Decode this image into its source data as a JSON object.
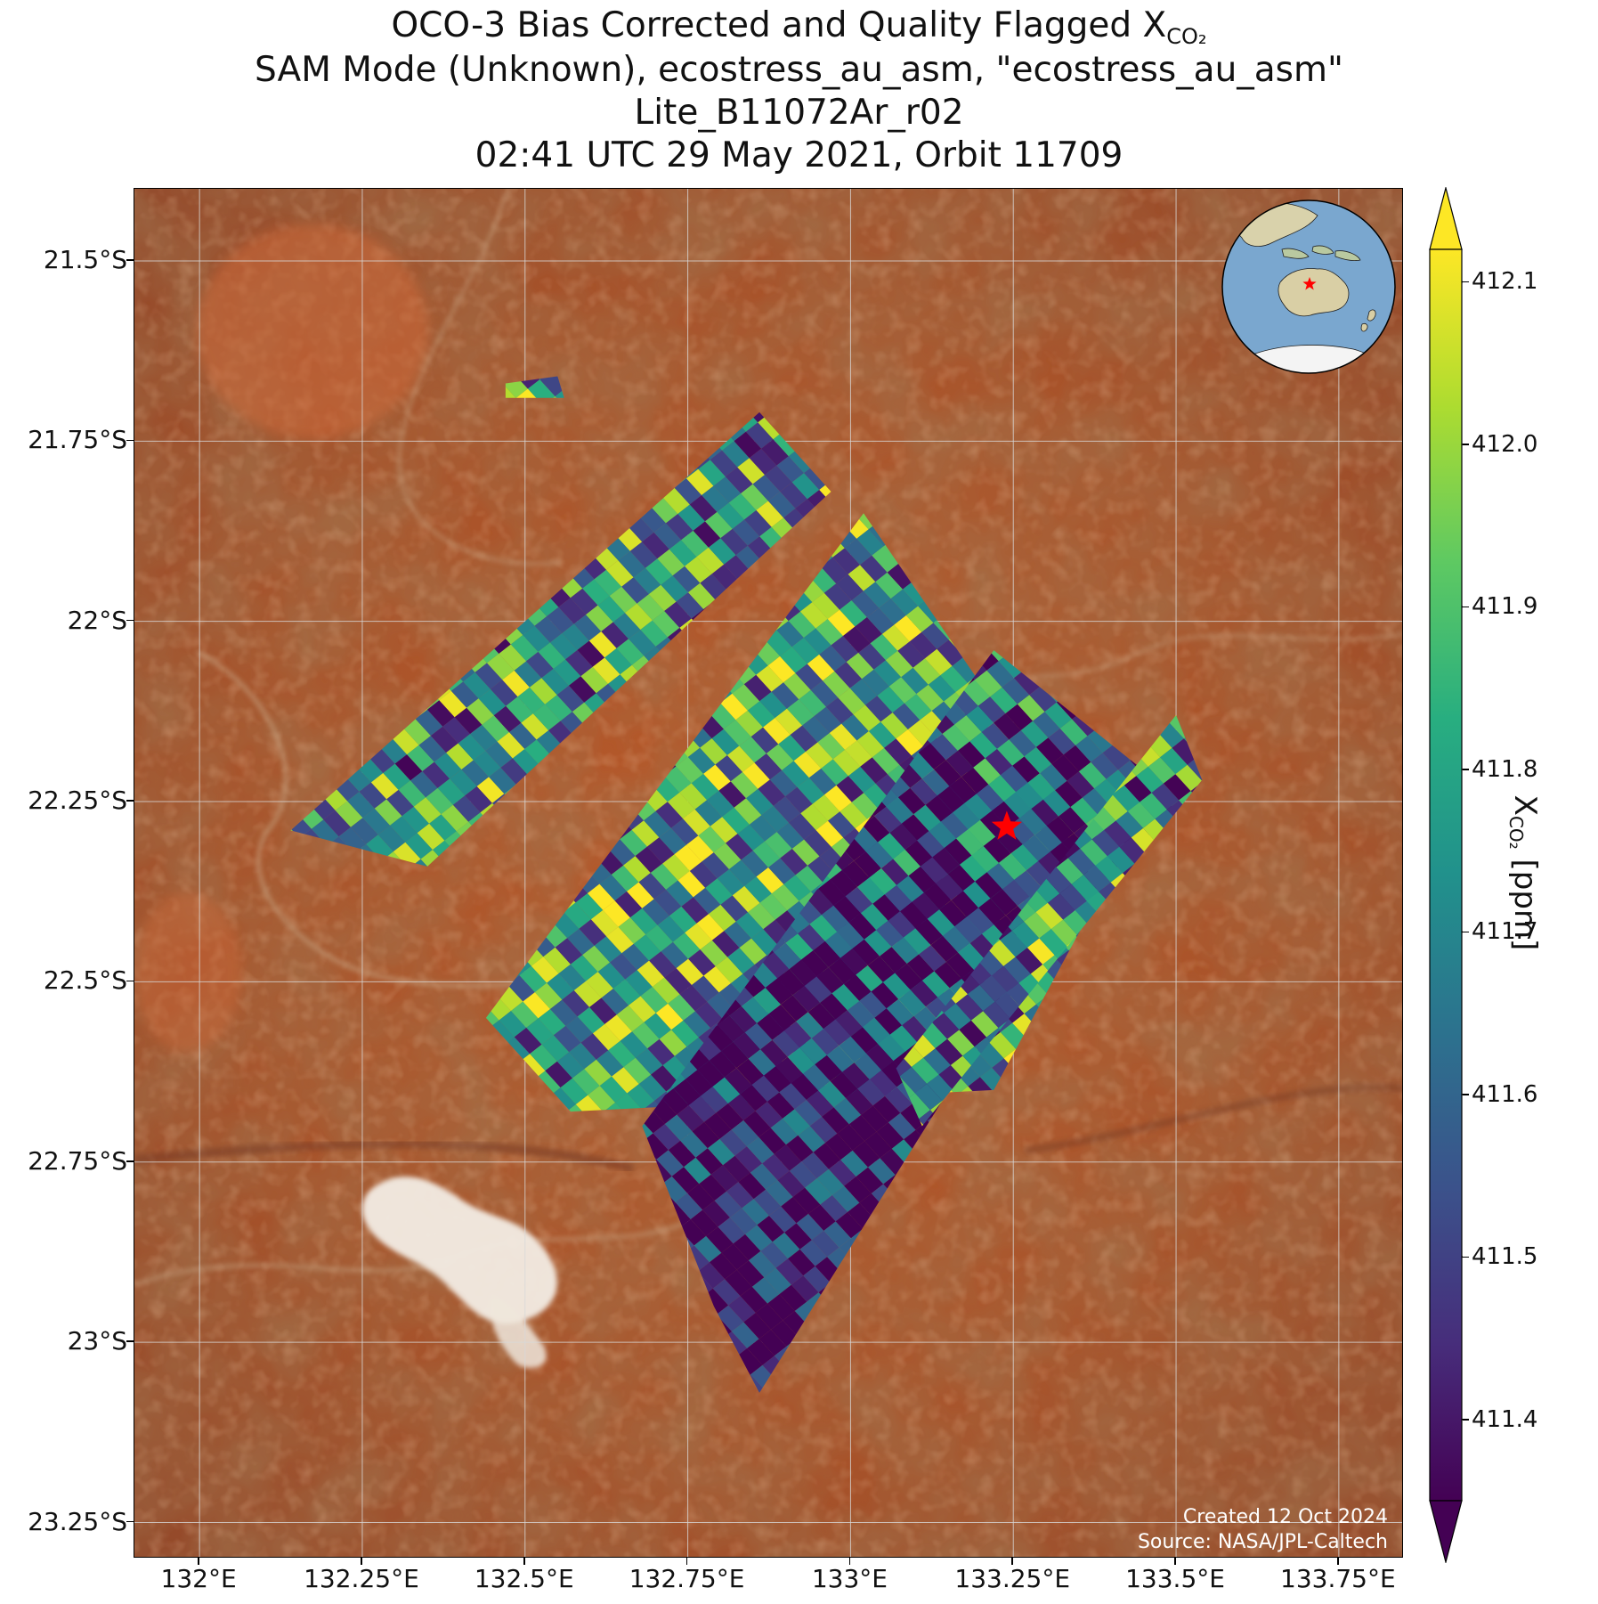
{
  "title": {
    "line1_prefix": "OCO-3 Bias Corrected and Quality Flagged X",
    "line1_sub": "CO₂",
    "line2": "SAM Mode (Unknown), ecostress_au_asm, \"ecostress_au_asm\"",
    "line3": "Lite_B11072Ar_r02",
    "line4": "02:41 UTC 29 May 2021, Orbit 11709"
  },
  "map": {
    "lon_range": [
      131.9,
      133.85
    ],
    "lat_range": [
      -23.3,
      -21.4
    ],
    "background": "satellite imagery, central Australia (arid red terrain, white salt lake in lower left)",
    "gridlines": true,
    "lon_ticks": [
      {
        "value": 132.0,
        "label": "132°E"
      },
      {
        "value": 132.25,
        "label": "132.25°E"
      },
      {
        "value": 132.5,
        "label": "132.5°E"
      },
      {
        "value": 132.75,
        "label": "132.75°E"
      },
      {
        "value": 133.0,
        "label": "133°E"
      },
      {
        "value": 133.25,
        "label": "133.25°E"
      },
      {
        "value": 133.5,
        "label": "133.5°E"
      },
      {
        "value": 133.75,
        "label": "133.75°E"
      }
    ],
    "lat_ticks": [
      {
        "value": -21.5,
        "label": "21.5°S"
      },
      {
        "value": -21.75,
        "label": "21.75°S"
      },
      {
        "value": -22.0,
        "label": "22°S"
      },
      {
        "value": -22.25,
        "label": "22.25°S"
      },
      {
        "value": -22.5,
        "label": "22.5°S"
      },
      {
        "value": -22.75,
        "label": "22.75°S"
      },
      {
        "value": -23.0,
        "label": "23°S"
      },
      {
        "value": -23.25,
        "label": "23.25°S"
      }
    ],
    "target_marker": {
      "lon": 133.24,
      "lat": -22.285,
      "symbol": "star",
      "color": "#ff0000"
    },
    "swaths": [
      {
        "name": "upper-left swath",
        "corners_lonlat": [
          [
            132.14,
            -22.29
          ],
          [
            132.86,
            -21.71
          ],
          [
            132.97,
            -21.82
          ],
          [
            132.35,
            -22.34
          ]
        ],
        "value_bias": 0.0
      },
      {
        "name": "main swath",
        "corners_lonlat": [
          [
            132.44,
            -22.55
          ],
          [
            133.02,
            -21.85
          ],
          [
            133.4,
            -22.35
          ],
          [
            133.22,
            -22.65
          ],
          [
            132.57,
            -22.68
          ]
        ],
        "value_bias": 0.05
      },
      {
        "name": "lower swath",
        "corners_lonlat": [
          [
            132.68,
            -22.7
          ],
          [
            133.22,
            -22.04
          ],
          [
            133.51,
            -22.25
          ],
          [
            133.29,
            -22.45
          ],
          [
            132.86,
            -23.07
          ],
          [
            132.79,
            -22.95
          ]
        ],
        "value_bias": -0.15
      },
      {
        "name": "right strip",
        "corners_lonlat": [
          [
            133.07,
            -22.62
          ],
          [
            133.5,
            -22.13
          ],
          [
            133.54,
            -22.22
          ],
          [
            133.11,
            -22.7
          ]
        ],
        "value_bias": 0.0
      },
      {
        "name": "small fragment",
        "corners_lonlat": [
          [
            132.47,
            -21.67
          ],
          [
            132.55,
            -21.66
          ],
          [
            132.56,
            -21.69
          ],
          [
            132.47,
            -21.69
          ]
        ],
        "value_bias": 0.0
      }
    ],
    "scene_summary": "XCO2 soundings plotted as footprints coloured by value across the SAM swaths"
  },
  "colorbar": {
    "title_prefix": "X",
    "title_sub": "CO₂",
    "title_suffix": " [ppm]",
    "colormap": "viridis",
    "vmin": 411.35,
    "vmax": 412.12,
    "extend": "both",
    "ticks": [
      {
        "value": 411.4,
        "label": "411.4"
      },
      {
        "value": 411.5,
        "label": "411.5"
      },
      {
        "value": 411.6,
        "label": "411.6"
      },
      {
        "value": 411.7,
        "label": "411.7"
      },
      {
        "value": 411.8,
        "label": "411.8"
      },
      {
        "value": 411.9,
        "label": "411.9"
      },
      {
        "value": 412.0,
        "label": "412.0"
      },
      {
        "value": 412.1,
        "label": "412.1"
      }
    ]
  },
  "inset_globe": {
    "description": "Orthographic globe centered near Australia with a red star marking the target",
    "ocean_color": "#7aa7cf",
    "land_color": "#d9cfa5",
    "marker_color": "#ff0000"
  },
  "credits": {
    "created": "Created 12 Oct 2024",
    "source": "Source: NASA/JPL-Caltech"
  }
}
